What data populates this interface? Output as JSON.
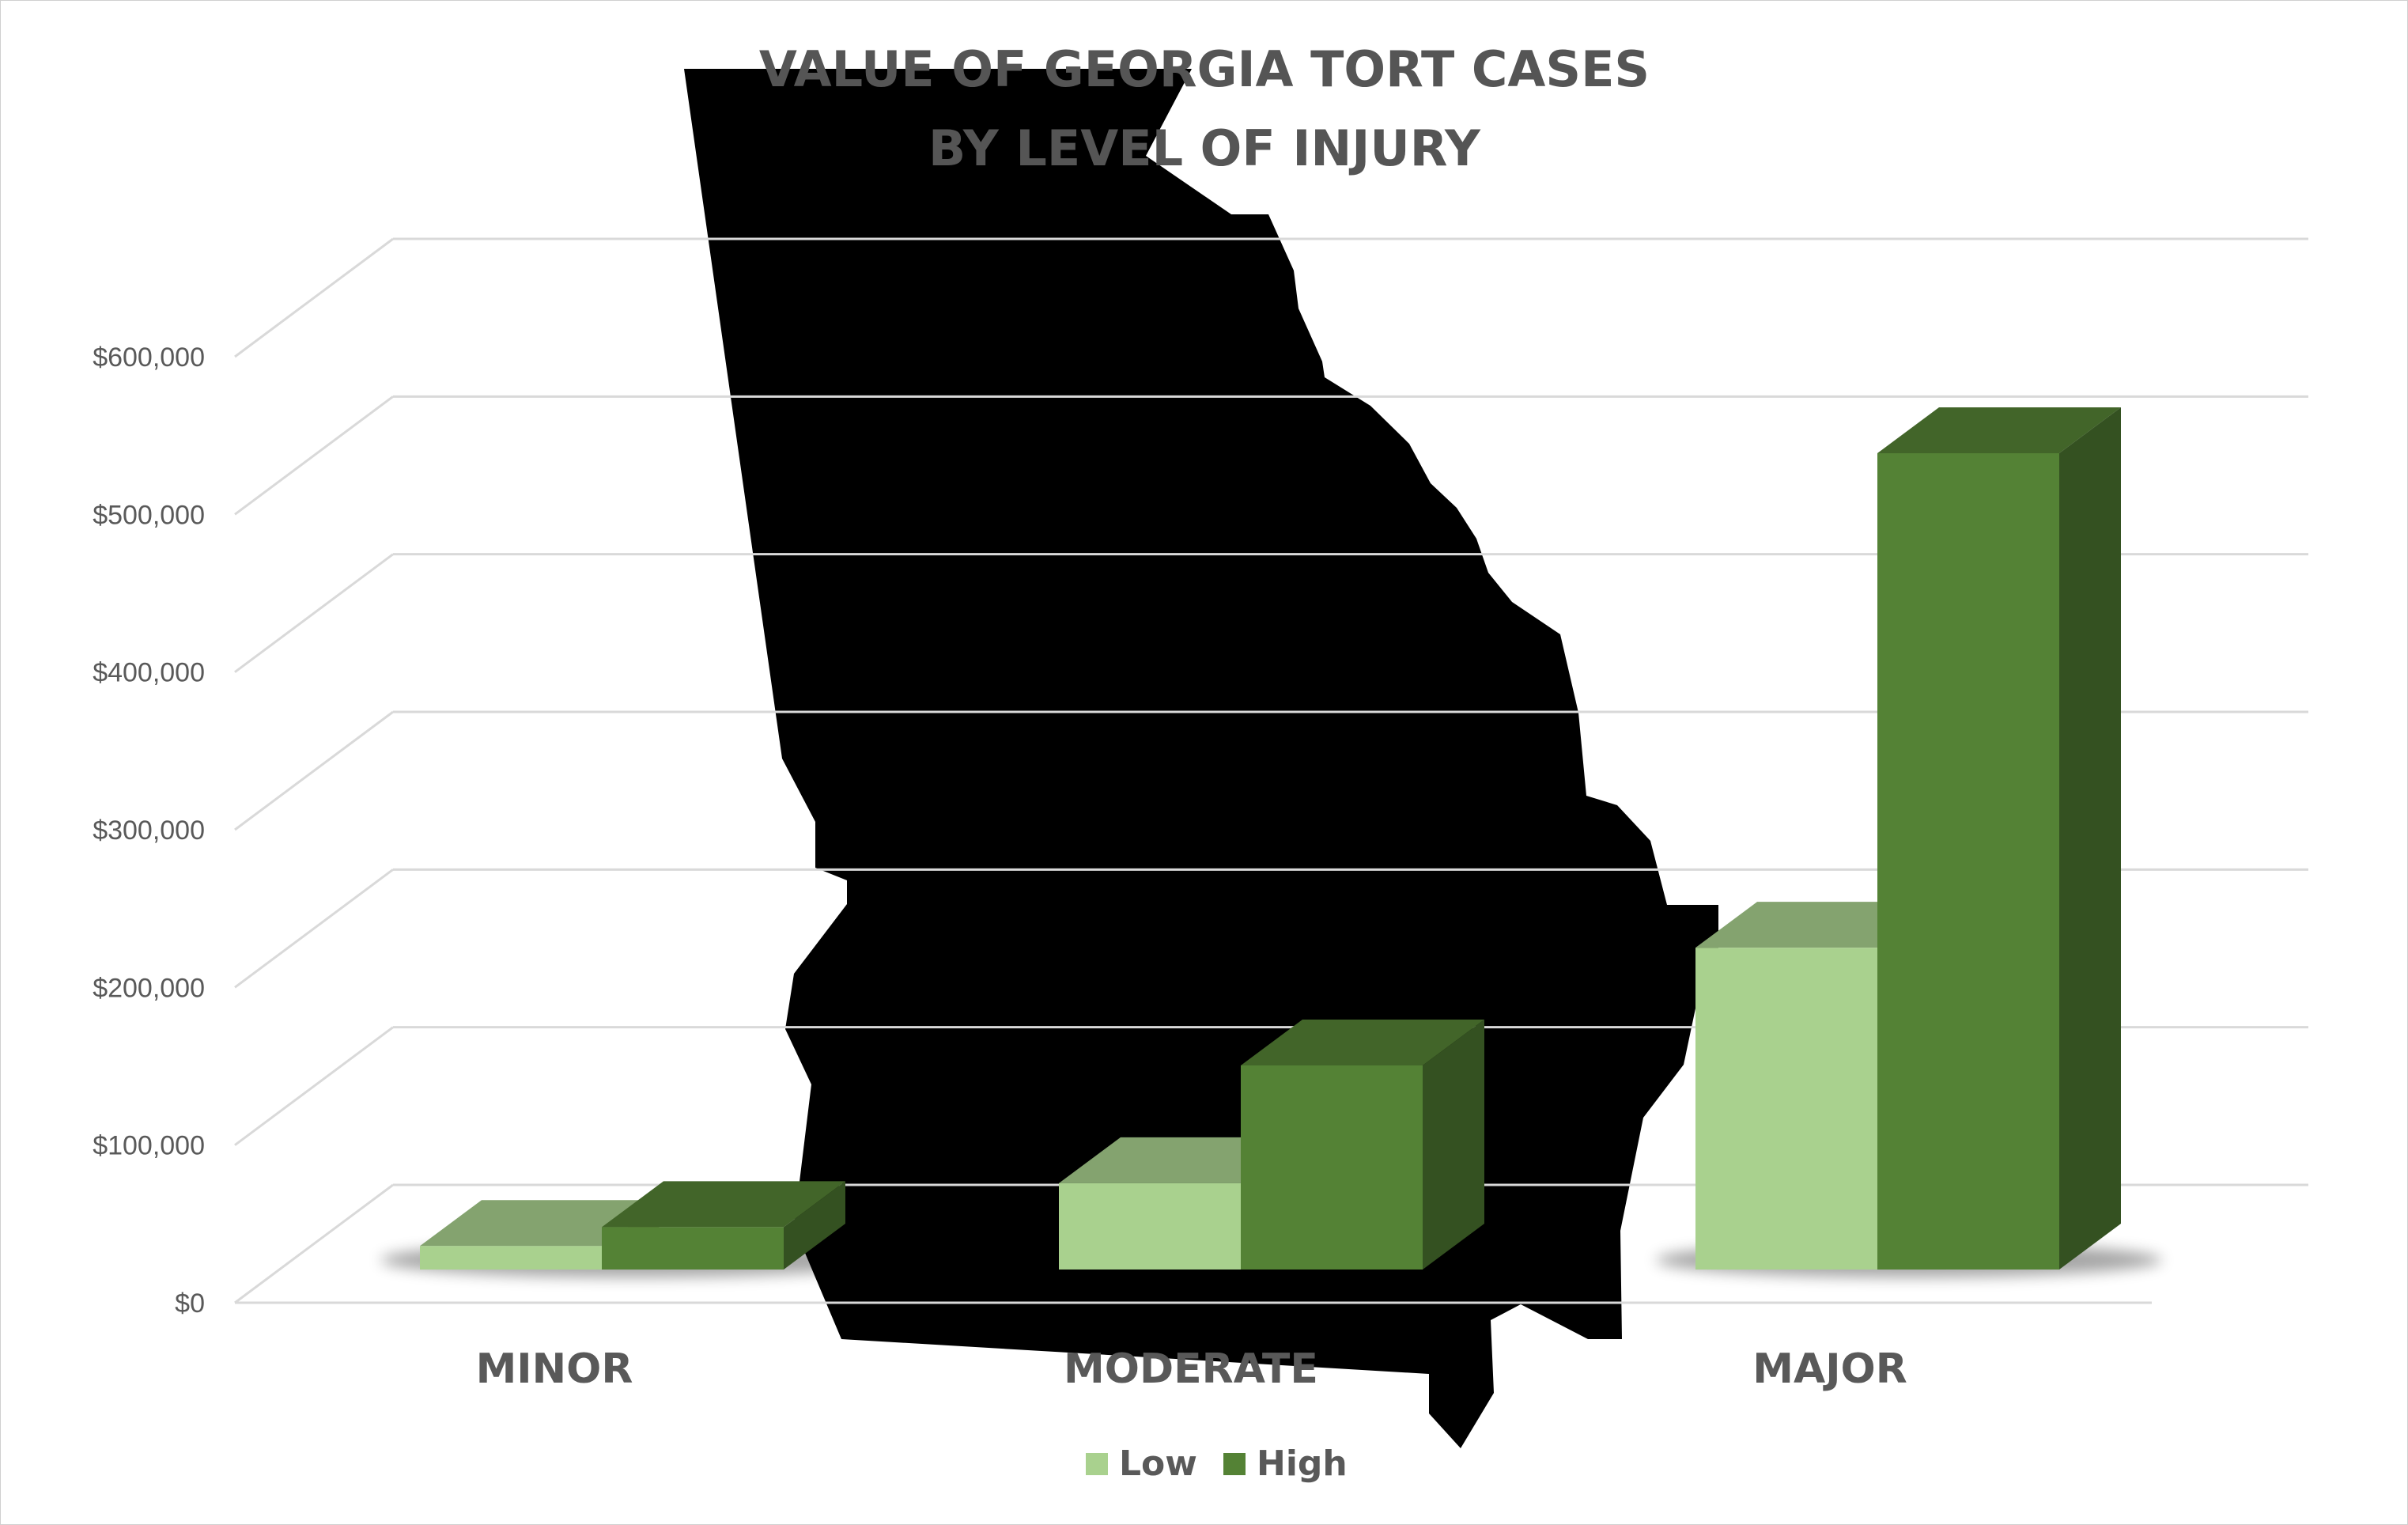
{
  "chart_data": {
    "type": "bar",
    "title_lines": [
      "VALUE OF GEORGIA TORT CASES",
      "BY LEVEL OF INJURY"
    ],
    "categories": [
      "MINOR",
      "MODERATE",
      "MAJOR"
    ],
    "series": [
      {
        "name": "Low",
        "values": [
          15000,
          55000,
          205000
        ],
        "color": "#a9d18e"
      },
      {
        "name": "High",
        "values": [
          27000,
          130000,
          520000
        ],
        "color": "#548235"
      }
    ],
    "y_ticks": [
      "$0",
      "$100,000",
      "$200,000",
      "$300,000",
      "$400,000",
      "$500,000",
      "$600,000"
    ],
    "ylim": [
      0,
      600000
    ],
    "grid": true,
    "legend_position": "bottom",
    "style": "3d-column",
    "background_shape": "map of Georgia",
    "background_color": "#7faadc"
  }
}
